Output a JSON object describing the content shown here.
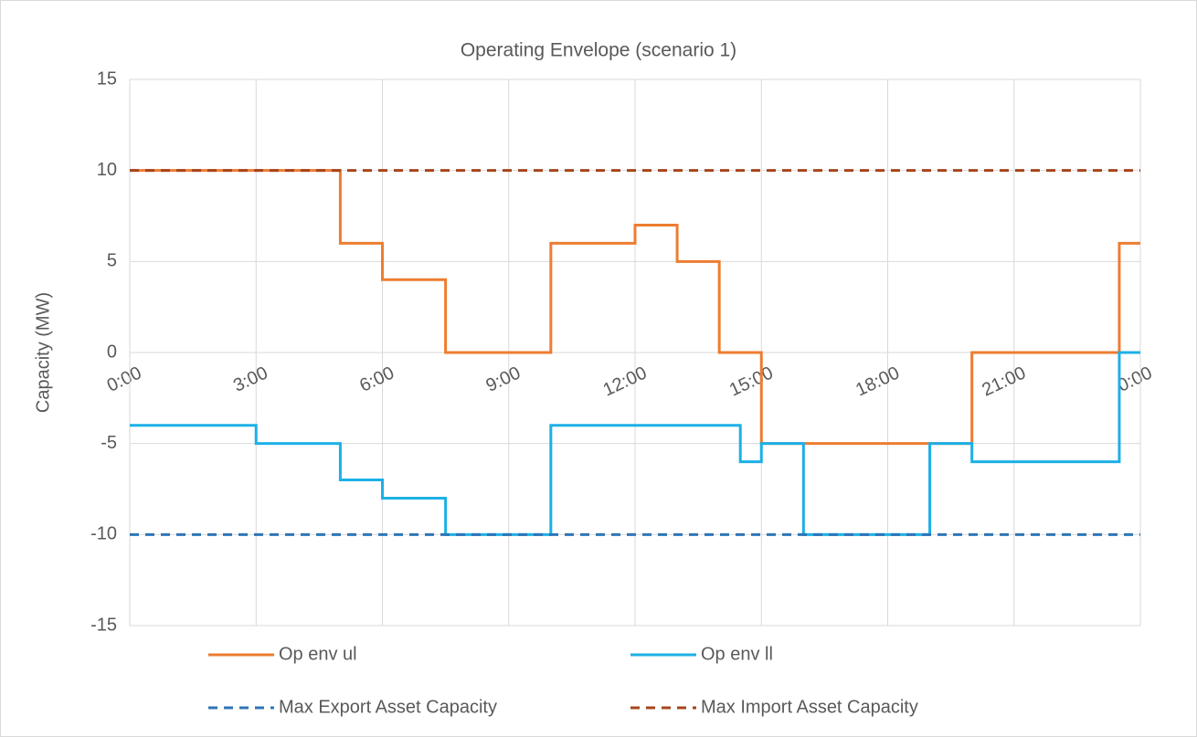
{
  "chart_data": {
    "type": "line",
    "title": "Operating Envelope (scenario 1)",
    "y_label": "Capacity (MW)",
    "xlim": [
      0,
      24
    ],
    "xticks": [
      {
        "value": 0,
        "label": "0:00"
      },
      {
        "value": 3,
        "label": "3:00"
      },
      {
        "value": 6,
        "label": "6:00"
      },
      {
        "value": 9,
        "label": "9:00"
      },
      {
        "value": 12,
        "label": "12:00"
      },
      {
        "value": 15,
        "label": "15:00"
      },
      {
        "value": 18,
        "label": "18:00"
      },
      {
        "value": 21,
        "label": "21:00"
      },
      {
        "value": 24,
        "label": "0:00"
      }
    ],
    "ylim": [
      -15,
      15
    ],
    "yticks": [
      -15,
      -10,
      -5,
      0,
      5,
      10,
      15
    ],
    "grid": true,
    "legend": "bottom",
    "series": [
      {
        "name": "Op env ul",
        "color": "#ed7d31",
        "dashed": false,
        "x": [
          0,
          5,
          5,
          6,
          6,
          7.5,
          7.5,
          10,
          10,
          12,
          12,
          13,
          13,
          14,
          14,
          15,
          15,
          20,
          20,
          23.5,
          23.5,
          24
        ],
        "values": [
          10,
          10,
          6,
          6,
          4,
          4,
          0,
          0,
          6,
          6,
          7,
          7,
          5,
          5,
          0,
          0,
          -5,
          -5,
          0,
          0,
          6,
          6
        ]
      },
      {
        "name": "Op env ll",
        "color": "#1cb0e6",
        "dashed": false,
        "x": [
          0,
          3,
          3,
          5,
          5,
          6,
          6,
          7.5,
          7.5,
          10,
          10,
          14.5,
          14.5,
          15,
          15,
          16,
          16,
          19,
          19,
          20,
          20,
          23.5,
          23.5,
          24
        ],
        "values": [
          -4,
          -4,
          -5,
          -5,
          -7,
          -7,
          -8,
          -8,
          -10,
          -10,
          -4,
          -4,
          -6,
          -6,
          -5,
          -5,
          -10,
          -10,
          -5,
          -5,
          -6,
          -6,
          0,
          0
        ]
      },
      {
        "name": "Max Export Asset Capacity",
        "color": "#2e75b6",
        "dashed": true,
        "x": [
          0,
          24
        ],
        "values": [
          -10,
          -10
        ]
      },
      {
        "name": "Max Import Asset Capacity",
        "color": "#a5461b",
        "dashed": true,
        "x": [
          0,
          24
        ],
        "values": [
          10,
          10
        ]
      }
    ]
  }
}
